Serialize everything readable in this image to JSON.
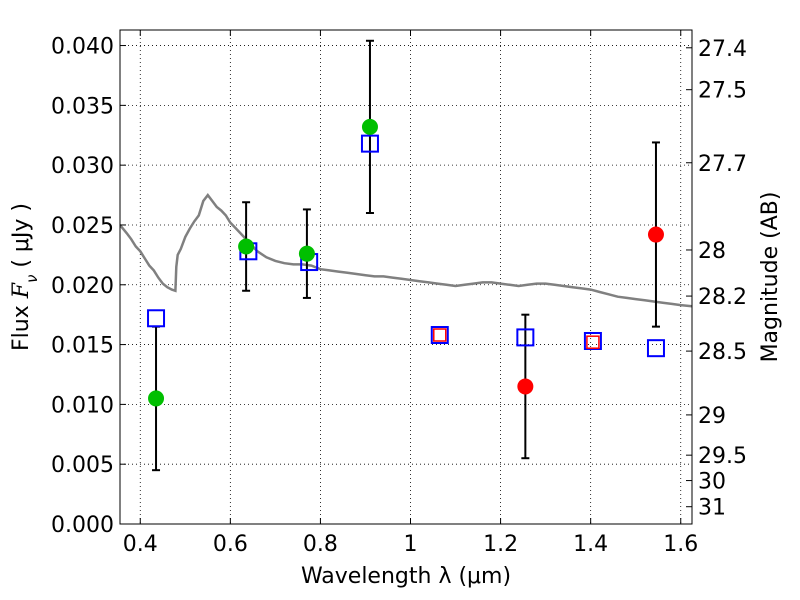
{
  "chart_data": {
    "type": "scatter",
    "xlabel": "Wavelength  λ (μm)",
    "ylabel_prefix": "Flux  ",
    "ylabel_symbol": "F",
    "ylabel_sub": "ν",
    "ylabel_suffix": "  ( μJy )",
    "y2label": "Magnitude (AB)",
    "xlim": [
      0.355,
      1.625
    ],
    "ylim": [
      0.0,
      0.0413
    ],
    "grid": true,
    "x_ticks": [
      {
        "v": 0.4,
        "label": "0.4"
      },
      {
        "v": 0.6,
        "label": "0.6"
      },
      {
        "v": 0.8,
        "label": "0.8"
      },
      {
        "v": 1.0,
        "label": "1"
      },
      {
        "v": 1.2,
        "label": "1.2"
      },
      {
        "v": 1.4,
        "label": "1.4"
      },
      {
        "v": 1.6,
        "label": "1.6"
      }
    ],
    "y_ticks": [
      {
        "v": 0.0,
        "label": "0.000"
      },
      {
        "v": 0.005,
        "label": "0.005"
      },
      {
        "v": 0.01,
        "label": "0.010"
      },
      {
        "v": 0.015,
        "label": "0.015"
      },
      {
        "v": 0.02,
        "label": "0.020"
      },
      {
        "v": 0.025,
        "label": "0.025"
      },
      {
        "v": 0.03,
        "label": "0.030"
      },
      {
        "v": 0.035,
        "label": "0.035"
      },
      {
        "v": 0.04,
        "label": "0.040"
      }
    ],
    "mag_ticks": [
      {
        "mag": 27.4,
        "label": "27.4"
      },
      {
        "mag": 27.5,
        "label": "27.5"
      },
      {
        "mag": 27.7,
        "label": "27.7"
      },
      {
        "mag": 28.0,
        "label": "28"
      },
      {
        "mag": 28.2,
        "label": "28.2"
      },
      {
        "mag": 28.5,
        "label": "28.5"
      },
      {
        "mag": 29.0,
        "label": "29"
      },
      {
        "mag": 29.5,
        "label": "29.5"
      },
      {
        "mag": 30.0,
        "label": "30"
      },
      {
        "mag": 31.0,
        "label": "31"
      }
    ],
    "series": [
      {
        "kind": "line",
        "color": "#808080",
        "x": [
          0.355,
          0.37,
          0.38,
          0.39,
          0.4,
          0.41,
          0.42,
          0.43,
          0.44,
          0.45,
          0.46,
          0.47,
          0.478,
          0.48,
          0.483,
          0.49,
          0.5,
          0.51,
          0.52,
          0.53,
          0.54,
          0.55,
          0.56,
          0.57,
          0.58,
          0.59,
          0.6,
          0.61,
          0.62,
          0.63,
          0.64,
          0.65,
          0.66,
          0.68,
          0.7,
          0.72,
          0.74,
          0.76,
          0.78,
          0.8,
          0.82,
          0.84,
          0.86,
          0.88,
          0.9,
          0.92,
          0.94,
          0.96,
          0.98,
          1.0,
          1.02,
          1.04,
          1.06,
          1.08,
          1.1,
          1.12,
          1.14,
          1.16,
          1.18,
          1.2,
          1.22,
          1.24,
          1.26,
          1.28,
          1.3,
          1.32,
          1.34,
          1.36,
          1.38,
          1.4,
          1.42,
          1.44,
          1.46,
          1.48,
          1.5,
          1.52,
          1.54,
          1.56,
          1.58,
          1.6,
          1.625
        ],
        "y": [
          0.025,
          0.0243,
          0.0238,
          0.0232,
          0.0228,
          0.0222,
          0.0216,
          0.0212,
          0.0206,
          0.0201,
          0.0198,
          0.0196,
          0.0195,
          0.0215,
          0.0225,
          0.023,
          0.024,
          0.0247,
          0.0253,
          0.0258,
          0.027,
          0.0275,
          0.027,
          0.0265,
          0.0262,
          0.0258,
          0.0252,
          0.0248,
          0.0244,
          0.024,
          0.0234,
          0.0232,
          0.0228,
          0.0223,
          0.022,
          0.0218,
          0.0217,
          0.0217,
          0.0216,
          0.0213,
          0.0212,
          0.0211,
          0.021,
          0.0209,
          0.0208,
          0.0207,
          0.0207,
          0.0206,
          0.0205,
          0.0204,
          0.0203,
          0.0202,
          0.0201,
          0.02,
          0.0199,
          0.02,
          0.0201,
          0.0202,
          0.0202,
          0.0201,
          0.02,
          0.0199,
          0.02,
          0.0201,
          0.0201,
          0.02,
          0.0199,
          0.0198,
          0.0197,
          0.0196,
          0.0194,
          0.0192,
          0.019,
          0.0189,
          0.0188,
          0.0187,
          0.0186,
          0.0185,
          0.0184,
          0.0183,
          0.0182
        ]
      },
      {
        "kind": "squares",
        "color": "#0000ff",
        "x": [
          0.435,
          0.64,
          0.775,
          0.91,
          1.065,
          1.255,
          1.405,
          1.545
        ],
        "y": [
          0.0172,
          0.0228,
          0.0219,
          0.0318,
          0.0158,
          0.0156,
          0.0153,
          0.0147
        ]
      },
      {
        "kind": "small_squares",
        "color": "#ff0000",
        "x": [
          1.065,
          1.405
        ],
        "y": [
          0.0158,
          0.0152
        ]
      },
      {
        "kind": "dots",
        "color": "#00bf00",
        "x": [
          0.435,
          0.635,
          0.77,
          0.91
        ],
        "y": [
          0.0105,
          0.0232,
          0.0226,
          0.0332
        ],
        "err": [
          0.006,
          0.0037,
          0.0037,
          0.0072
        ]
      },
      {
        "kind": "dots",
        "color": "#ff0000",
        "x": [
          1.255,
          1.545
        ],
        "y": [
          0.0115,
          0.0242
        ],
        "err": [
          0.006,
          0.0077
        ]
      }
    ]
  }
}
